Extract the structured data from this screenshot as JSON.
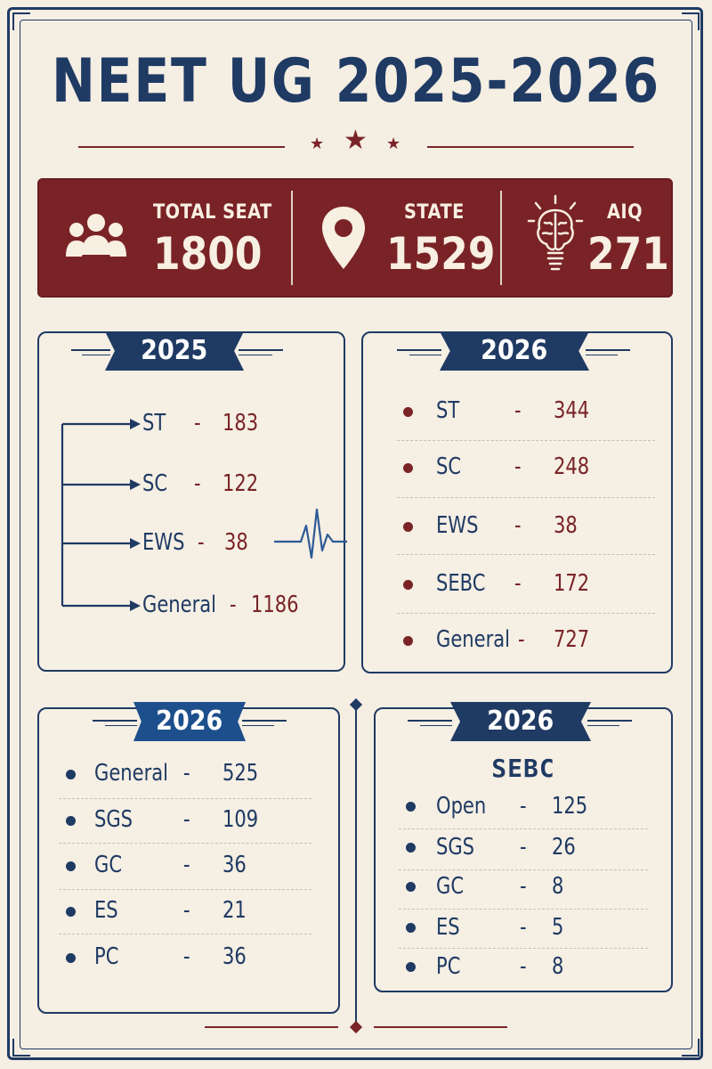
{
  "title": "NEET UG 2025-2026",
  "stats": [
    {
      "label": "TOTAL SEAT",
      "value": "1800",
      "icon": "people-group-icon"
    },
    {
      "label": "STATE",
      "value": "1529",
      "icon": "map-pin-icon"
    },
    {
      "label": "AIQ",
      "value": "271",
      "icon": "brain-bulb-icon"
    }
  ],
  "panel_2025": {
    "year": "2025",
    "rows": [
      {
        "name": "ST",
        "dash": "-",
        "value": "183"
      },
      {
        "name": "SC",
        "dash": "-",
        "value": "122"
      },
      {
        "name": "EWS",
        "dash": "-",
        "value": "38"
      },
      {
        "name": "General",
        "dash": "-",
        "value": "1186"
      }
    ]
  },
  "panel_2026_state": {
    "year": "2026",
    "rows": [
      {
        "name": "ST",
        "dash": "-",
        "value": "344"
      },
      {
        "name": "SC",
        "dash": "-",
        "value": "248"
      },
      {
        "name": "EWS",
        "dash": "-",
        "value": "38"
      },
      {
        "name": "SEBC",
        "dash": "-",
        "value": "172"
      },
      {
        "name": "General",
        "dash": "-",
        "value": "727"
      }
    ]
  },
  "panel_2026_general": {
    "year": "2026",
    "rows": [
      {
        "name": "General",
        "dash": "-",
        "value": "525"
      },
      {
        "name": "SGS",
        "dash": "-",
        "value": "109"
      },
      {
        "name": "GC",
        "dash": "-",
        "value": "36"
      },
      {
        "name": "ES",
        "dash": "-",
        "value": "21"
      },
      {
        "name": "PC",
        "dash": "-",
        "value": "36"
      }
    ]
  },
  "panel_2026_sebc": {
    "year": "2026",
    "heading": "SEBC",
    "rows": [
      {
        "name": "Open",
        "dash": "-",
        "value": "125"
      },
      {
        "name": "SGS",
        "dash": "-",
        "value": "26"
      },
      {
        "name": "GC",
        "dash": "-",
        "value": "8"
      },
      {
        "name": "ES",
        "dash": "-",
        "value": "5"
      },
      {
        "name": "PC",
        "dash": "-",
        "value": "8"
      }
    ]
  },
  "colors": {
    "navy": "#1f3a63",
    "maroon": "#7a2326",
    "paper": "#f4eee3"
  }
}
